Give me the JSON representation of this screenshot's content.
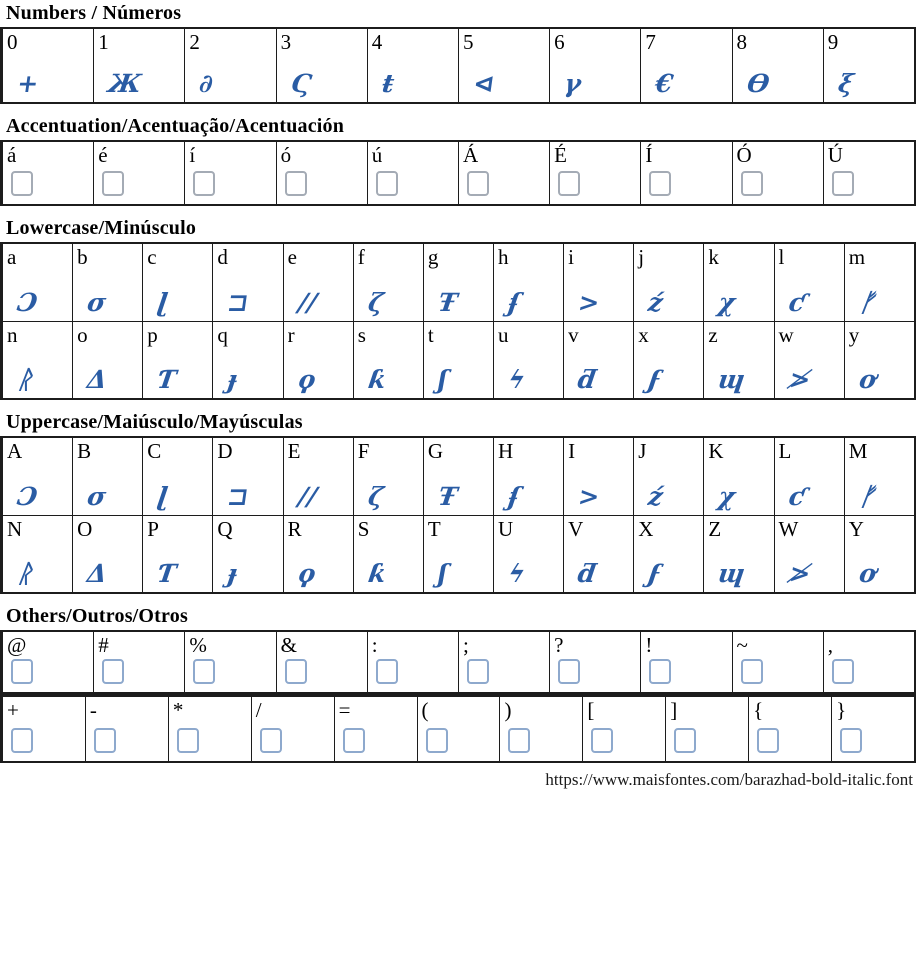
{
  "meta": {
    "glyph_color": "#2a5ca4",
    "border_color": "#1c1c1c",
    "missing_glyph_box_grey": "#a4abb5",
    "missing_glyph_box_blue": "#8ea9cd"
  },
  "numbers": {
    "title": "Numbers / Números",
    "cells": [
      {
        "label": "0",
        "glyph": "+"
      },
      {
        "label": "1",
        "glyph": "Ж"
      },
      {
        "label": "2",
        "glyph": "∂"
      },
      {
        "label": "3",
        "glyph": "Ϛ"
      },
      {
        "label": "4",
        "glyph": "ŧ"
      },
      {
        "label": "5",
        "glyph": "⊲"
      },
      {
        "label": "6",
        "glyph": "γ"
      },
      {
        "label": "7",
        "glyph": "€"
      },
      {
        "label": "8",
        "glyph": "ϴ"
      },
      {
        "label": "9",
        "glyph": "ξ"
      }
    ]
  },
  "accentuation": {
    "title": "Accentuation/Acentuação/Acentuación",
    "cells": [
      {
        "label": "á"
      },
      {
        "label": "é"
      },
      {
        "label": "í"
      },
      {
        "label": "ó"
      },
      {
        "label": "ú"
      },
      {
        "label": "Á"
      },
      {
        "label": "É"
      },
      {
        "label": "Í"
      },
      {
        "label": "Ó"
      },
      {
        "label": "Ú"
      }
    ]
  },
  "lowercase": {
    "title": "Lowercase/Minúsculo",
    "row1": [
      {
        "label": "a",
        "glyph": "Ɔ"
      },
      {
        "label": "b",
        "glyph": "σ"
      },
      {
        "label": "c",
        "glyph": "ɭ"
      },
      {
        "label": "d",
        "glyph": "⊐"
      },
      {
        "label": "e",
        "glyph": "∕∕"
      },
      {
        "label": "f",
        "glyph": "ζ"
      },
      {
        "label": "g",
        "glyph": "Ŧ"
      },
      {
        "label": "h",
        "glyph": "ʄ"
      },
      {
        "label": "i",
        "glyph": ">"
      },
      {
        "label": "j",
        "glyph": "ź"
      },
      {
        "label": "k",
        "glyph": "χ"
      },
      {
        "label": "l",
        "glyph": "ƈ"
      },
      {
        "label": "m",
        "glyph": "ᚠ"
      }
    ],
    "row2": [
      {
        "label": "n",
        "glyph": "ᚱ"
      },
      {
        "label": "o",
        "glyph": "Δ"
      },
      {
        "label": "p",
        "glyph": "Ƭ"
      },
      {
        "label": "q",
        "glyph": "ɟ"
      },
      {
        "label": "r",
        "glyph": "ϙ"
      },
      {
        "label": "s",
        "glyph": "ƙ"
      },
      {
        "label": "t",
        "glyph": "ʃ"
      },
      {
        "label": "u",
        "glyph": "ϟ"
      },
      {
        "label": "v",
        "glyph": "ƌ"
      },
      {
        "label": "x",
        "glyph": "ϝ"
      },
      {
        "label": "z",
        "glyph": "ɰ"
      },
      {
        "label": "w",
        "glyph": "≯"
      },
      {
        "label": "y",
        "glyph": "ơ"
      }
    ]
  },
  "uppercase": {
    "title": "Uppercase/Maiúsculo/Mayúsculas",
    "row1": [
      {
        "label": "A",
        "glyph": "Ɔ"
      },
      {
        "label": "B",
        "glyph": "σ"
      },
      {
        "label": "C",
        "glyph": "ɭ"
      },
      {
        "label": "D",
        "glyph": "⊐"
      },
      {
        "label": "E",
        "glyph": "∕∕"
      },
      {
        "label": "F",
        "glyph": "ζ"
      },
      {
        "label": "G",
        "glyph": "Ŧ"
      },
      {
        "label": "H",
        "glyph": "ʄ"
      },
      {
        "label": "I",
        "glyph": ">"
      },
      {
        "label": "J",
        "glyph": "ź"
      },
      {
        "label": "K",
        "glyph": "χ"
      },
      {
        "label": "L",
        "glyph": "ƈ"
      },
      {
        "label": "M",
        "glyph": "ᚠ"
      }
    ],
    "row2": [
      {
        "label": "N",
        "glyph": "ᚱ"
      },
      {
        "label": "O",
        "glyph": "Δ"
      },
      {
        "label": "P",
        "glyph": "Ƭ"
      },
      {
        "label": "Q",
        "glyph": "ɟ"
      },
      {
        "label": "R",
        "glyph": "ϙ"
      },
      {
        "label": "S",
        "glyph": "ƙ"
      },
      {
        "label": "T",
        "glyph": "ʃ"
      },
      {
        "label": "U",
        "glyph": "ϟ"
      },
      {
        "label": "V",
        "glyph": "ƌ"
      },
      {
        "label": "X",
        "glyph": "ϝ"
      },
      {
        "label": "Z",
        "glyph": "ɰ"
      },
      {
        "label": "W",
        "glyph": "≯"
      },
      {
        "label": "Y",
        "glyph": "ơ"
      }
    ]
  },
  "others": {
    "title": "Others/Outros/Otros",
    "row1": [
      {
        "label": "@"
      },
      {
        "label": "#"
      },
      {
        "label": "%"
      },
      {
        "label": "&"
      },
      {
        "label": ":"
      },
      {
        "label": ";"
      },
      {
        "label": "?"
      },
      {
        "label": "!"
      },
      {
        "label": "~"
      },
      {
        "label": ","
      }
    ],
    "row2": [
      {
        "label": "+"
      },
      {
        "label": "-"
      },
      {
        "label": "*"
      },
      {
        "label": "/"
      },
      {
        "label": "="
      },
      {
        "label": "("
      },
      {
        "label": ")"
      },
      {
        "label": "["
      },
      {
        "label": "]"
      },
      {
        "label": "{"
      },
      {
        "label": "}"
      }
    ]
  },
  "footer": {
    "url": "https://www.maisfontes.com/barazhad-bold-italic.font"
  }
}
